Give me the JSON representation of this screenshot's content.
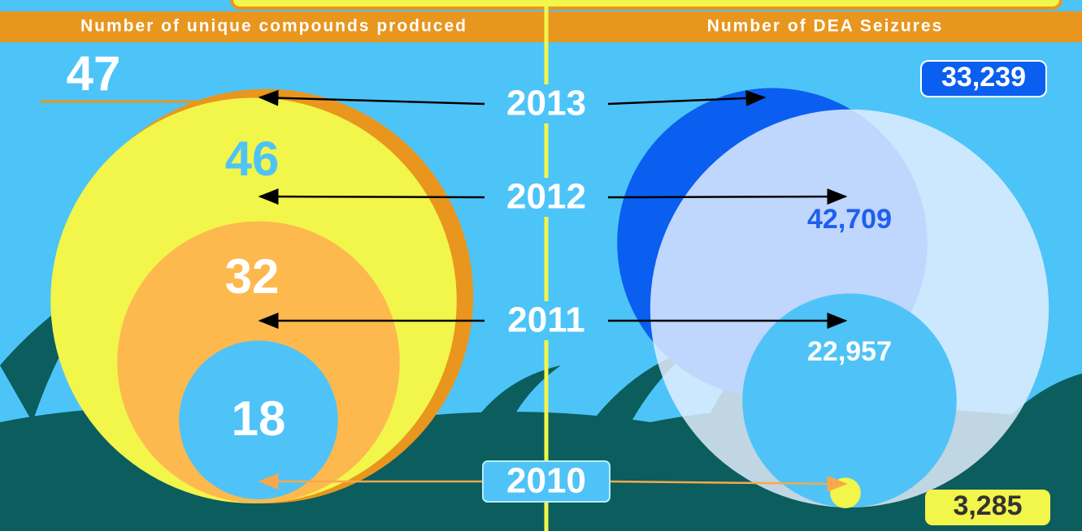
{
  "chart_data": [
    {
      "type": "bubble",
      "title": "Number of unique compounds produced",
      "categories": [
        "2013",
        "2012",
        "2011",
        "2010"
      ],
      "values": [
        47,
        46,
        32,
        18
      ],
      "colors": [
        "#e8961e",
        "#f2f54a",
        "#fdb94e",
        "#4fc3f7"
      ]
    },
    {
      "type": "bubble",
      "title": "Number of DEA Seizures",
      "categories": [
        "2013",
        "2012",
        "2011",
        "2010"
      ],
      "values": [
        33239,
        42709,
        22957,
        3285
      ],
      "value_labels": [
        "33,239",
        "42,709",
        "22,957",
        "3,285"
      ],
      "colors": [
        "#0a5ef0",
        "#e8f0ff",
        "#4fc3f7",
        "#f2f54a"
      ]
    }
  ]
}
